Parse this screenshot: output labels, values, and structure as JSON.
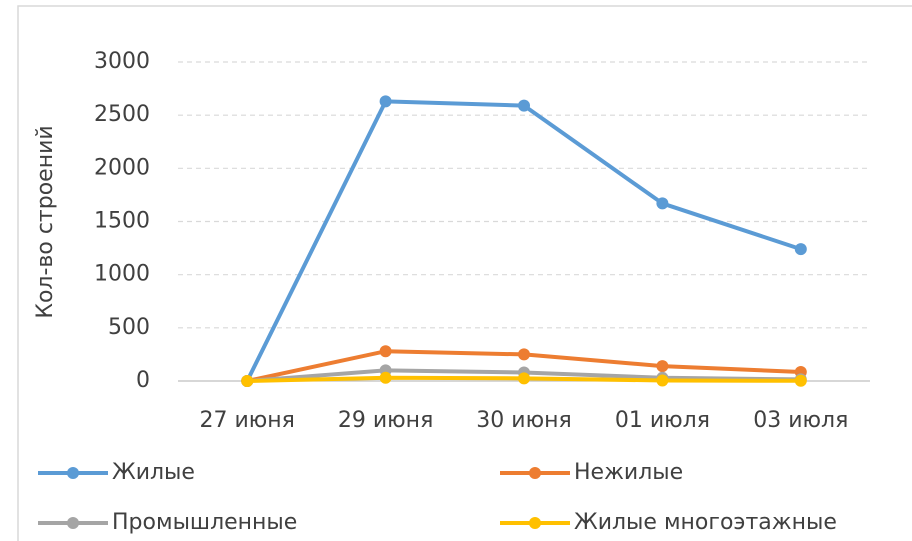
{
  "chart_data": {
    "type": "line",
    "y_label": "Кол-во строений",
    "categories": [
      "27 июня",
      "29 июня",
      "30 июня",
      "01 июля",
      "03 июля"
    ],
    "series": [
      {
        "name": "Жилые",
        "color": "#5b9bd5",
        "values": [
          0,
          2630,
          2590,
          1670,
          1240
        ]
      },
      {
        "name": "Нежилые",
        "color": "#ed7d31",
        "values": [
          0,
          280,
          250,
          140,
          85
        ]
      },
      {
        "name": "Промышленные",
        "color": "#a5a5a5",
        "values": [
          0,
          100,
          80,
          30,
          15
        ]
      },
      {
        "name": "Жилые многоэтажные",
        "color": "#ffc000",
        "values": [
          0,
          30,
          25,
          5,
          2
        ]
      }
    ],
    "ylim": [
      0,
      3000
    ],
    "yticks": [
      0,
      500,
      1000,
      1500,
      2000,
      2500,
      3000
    ],
    "grid": true,
    "legend": "bottom"
  }
}
